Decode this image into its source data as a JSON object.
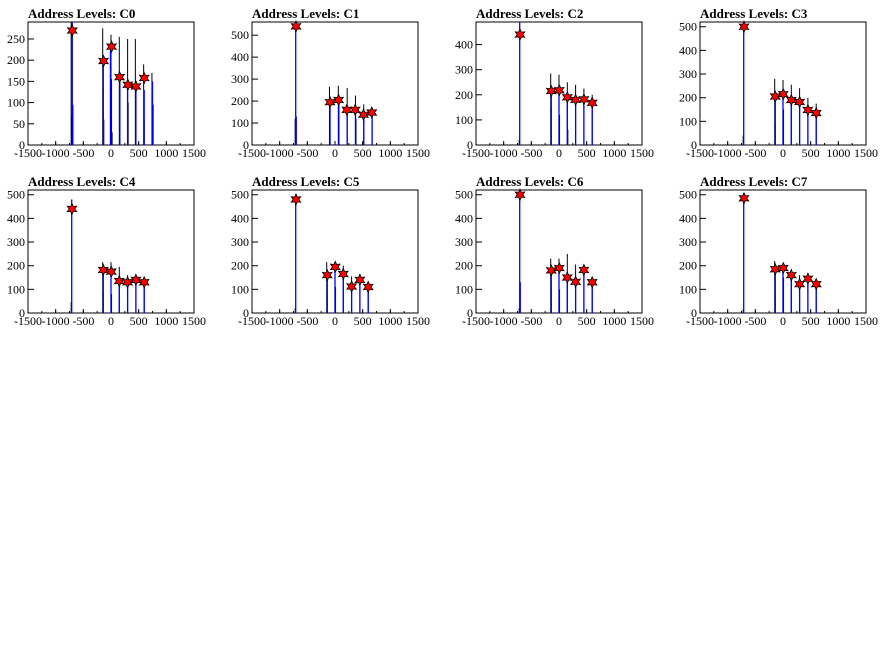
{
  "chart_data": [
    {
      "type": "bar",
      "title": "Address Levels: C0",
      "xlabel": "",
      "ylabel": "",
      "xlim": [
        -1500,
        1500
      ],
      "ylim": [
        0,
        290
      ],
      "xticks": [
        -1500,
        -1000,
        -500,
        0,
        500,
        1000,
        1500
      ],
      "yticks": [
        0,
        50,
        100,
        150,
        200,
        250
      ],
      "black_peaks": [
        [
          -720,
          290
        ],
        [
          -710,
          70
        ],
        [
          -150,
          275
        ],
        [
          -140,
          135
        ],
        [
          -130,
          60
        ],
        [
          0,
          260
        ],
        [
          10,
          155
        ],
        [
          20,
          30
        ],
        [
          150,
          255
        ],
        [
          160,
          130
        ],
        [
          300,
          250
        ],
        [
          310,
          100
        ],
        [
          440,
          250
        ],
        [
          450,
          120
        ],
        [
          590,
          190
        ],
        [
          600,
          60
        ],
        [
          740,
          170
        ],
        [
          750,
          70
        ]
      ],
      "blue_peaks": [
        [
          -700,
          290
        ],
        [
          -690,
          95
        ],
        [
          -140,
          190
        ],
        [
          -10,
          240
        ],
        [
          0,
          130
        ],
        [
          160,
          160
        ],
        [
          300,
          155
        ],
        [
          450,
          135
        ],
        [
          600,
          130
        ],
        [
          750,
          150
        ],
        [
          760,
          95
        ]
      ],
      "markers": [
        {
          "x": -700,
          "y": 270
        },
        {
          "x": -135,
          "y": 198
        },
        {
          "x": 10,
          "y": 232
        },
        {
          "x": 155,
          "y": 160
        },
        {
          "x": 305,
          "y": 142
        },
        {
          "x": 450,
          "y": 138
        },
        {
          "x": 600,
          "y": 158
        }
      ]
    },
    {
      "type": "bar",
      "title": "Address Levels: C1",
      "xlabel": "",
      "ylabel": "",
      "xlim": [
        -1500,
        1500
      ],
      "ylim": [
        0,
        560
      ],
      "xticks": [
        -1500,
        -1000,
        -500,
        0,
        500,
        1000,
        1500
      ],
      "yticks": [
        0,
        100,
        200,
        300,
        400,
        500
      ],
      "black_peaks": [
        [
          -720,
          120
        ],
        [
          -100,
          265
        ],
        [
          -90,
          90
        ],
        [
          60,
          270
        ],
        [
          70,
          200
        ],
        [
          220,
          260
        ],
        [
          370,
          225
        ],
        [
          380,
          120
        ],
        [
          520,
          185
        ],
        [
          670,
          165
        ]
      ],
      "blue_peaks": [
        [
          -710,
          540
        ],
        [
          -700,
          130
        ],
        [
          -90,
          200
        ],
        [
          70,
          210
        ],
        [
          220,
          165
        ],
        [
          370,
          165
        ],
        [
          520,
          140
        ],
        [
          670,
          150
        ]
      ],
      "markers": [
        {
          "x": -705,
          "y": 540
        },
        {
          "x": -90,
          "y": 195
        },
        {
          "x": 65,
          "y": 205
        },
        {
          "x": 215,
          "y": 160
        },
        {
          "x": 365,
          "y": 160
        },
        {
          "x": 515,
          "y": 138
        },
        {
          "x": 665,
          "y": 148
        }
      ]
    },
    {
      "type": "bar",
      "title": "Address Levels: C2",
      "xlabel": "",
      "ylabel": "",
      "xlim": [
        -1500,
        1500
      ],
      "ylim": [
        0,
        490
      ],
      "xticks": [
        -1500,
        -1000,
        -500,
        0,
        500,
        1000,
        1500
      ],
      "yticks": [
        0,
        100,
        200,
        300,
        400
      ],
      "black_peaks": [
        [
          -720,
          20
        ],
        [
          -150,
          285
        ],
        [
          -140,
          150
        ],
        [
          0,
          280
        ],
        [
          10,
          120
        ],
        [
          150,
          250
        ],
        [
          160,
          60
        ],
        [
          300,
          240
        ],
        [
          450,
          225
        ],
        [
          600,
          200
        ]
      ],
      "blue_peaks": [
        [
          -710,
          490
        ],
        [
          -140,
          210
        ],
        [
          0,
          210
        ],
        [
          150,
          185
        ],
        [
          300,
          175
        ],
        [
          450,
          180
        ],
        [
          600,
          165
        ]
      ],
      "markers": [
        {
          "x": -705,
          "y": 440
        },
        {
          "x": -140,
          "y": 215
        },
        {
          "x": 5,
          "y": 218
        },
        {
          "x": 150,
          "y": 190
        },
        {
          "x": 300,
          "y": 180
        },
        {
          "x": 450,
          "y": 182
        },
        {
          "x": 600,
          "y": 168
        }
      ]
    },
    {
      "type": "bar",
      "title": "Address Levels: C3",
      "xlabel": "",
      "ylabel": "",
      "xlim": [
        -1500,
        1500
      ],
      "ylim": [
        0,
        520
      ],
      "xticks": [
        -1500,
        -1000,
        -500,
        0,
        500,
        1000,
        1500
      ],
      "yticks": [
        0,
        100,
        200,
        300,
        400,
        500
      ],
      "black_peaks": [
        [
          -720,
          40
        ],
        [
          -150,
          280
        ],
        [
          -140,
          90
        ],
        [
          0,
          275
        ],
        [
          10,
          150
        ],
        [
          150,
          255
        ],
        [
          300,
          240
        ],
        [
          450,
          200
        ],
        [
          600,
          175
        ]
      ],
      "blue_peaks": [
        [
          -710,
          515
        ],
        [
          -140,
          205
        ],
        [
          0,
          205
        ],
        [
          150,
          185
        ],
        [
          300,
          180
        ],
        [
          450,
          150
        ],
        [
          600,
          140
        ]
      ],
      "markers": [
        {
          "x": -705,
          "y": 500
        },
        {
          "x": -140,
          "y": 205
        },
        {
          "x": 5,
          "y": 215
        },
        {
          "x": 150,
          "y": 190
        },
        {
          "x": 300,
          "y": 182
        },
        {
          "x": 450,
          "y": 148
        },
        {
          "x": 600,
          "y": 135
        }
      ]
    },
    {
      "type": "bar",
      "title": "Address Levels: C4",
      "xlabel": "",
      "ylabel": "",
      "xlim": [
        -1500,
        1500
      ],
      "ylim": [
        0,
        520
      ],
      "xticks": [
        -1500,
        -1000,
        -500,
        0,
        500,
        1000,
        1500
      ],
      "yticks": [
        0,
        100,
        200,
        300,
        400,
        500
      ],
      "black_peaks": [
        [
          -720,
          45
        ],
        [
          -150,
          215
        ],
        [
          -140,
          90
        ],
        [
          0,
          215
        ],
        [
          10,
          80
        ],
        [
          150,
          195
        ],
        [
          300,
          160
        ],
        [
          450,
          150
        ],
        [
          600,
          140
        ]
      ],
      "blue_peaks": [
        [
          -710,
          480
        ],
        [
          -140,
          185
        ],
        [
          0,
          190
        ],
        [
          150,
          140
        ],
        [
          300,
          135
        ],
        [
          450,
          145
        ],
        [
          600,
          130
        ]
      ],
      "markers": [
        {
          "x": -705,
          "y": 440
        },
        {
          "x": -140,
          "y": 182
        },
        {
          "x": 5,
          "y": 175
        },
        {
          "x": 150,
          "y": 135
        },
        {
          "x": 300,
          "y": 130
        },
        {
          "x": 450,
          "y": 140
        },
        {
          "x": 600,
          "y": 130
        }
      ]
    },
    {
      "type": "bar",
      "title": "Address Levels: C5",
      "xlabel": "",
      "ylabel": "",
      "xlim": [
        -1500,
        1500
      ],
      "ylim": [
        0,
        520
      ],
      "xticks": [
        -1500,
        -1000,
        -500,
        0,
        500,
        1000,
        1500
      ],
      "yticks": [
        0,
        100,
        200,
        300,
        400,
        500
      ],
      "black_peaks": [
        [
          -720,
          20
        ],
        [
          -150,
          215
        ],
        [
          -140,
          80
        ],
        [
          0,
          205
        ],
        [
          10,
          110
        ],
        [
          150,
          200
        ],
        [
          300,
          155
        ],
        [
          450,
          165
        ],
        [
          600,
          120
        ]
      ],
      "blue_peaks": [
        [
          -710,
          485
        ],
        [
          -140,
          175
        ],
        [
          0,
          190
        ],
        [
          150,
          180
        ],
        [
          300,
          115
        ],
        [
          450,
          145
        ],
        [
          600,
          110
        ]
      ],
      "markers": [
        {
          "x": -705,
          "y": 480
        },
        {
          "x": -140,
          "y": 160
        },
        {
          "x": 5,
          "y": 195
        },
        {
          "x": 150,
          "y": 165
        },
        {
          "x": 300,
          "y": 112
        },
        {
          "x": 450,
          "y": 140
        },
        {
          "x": 600,
          "y": 110
        }
      ]
    },
    {
      "type": "bar",
      "title": "Address Levels: C6",
      "xlabel": "",
      "ylabel": "",
      "xlim": [
        -1500,
        1500
      ],
      "ylim": [
        0,
        520
      ],
      "xticks": [
        -1500,
        -1000,
        -500,
        0,
        500,
        1000,
        1500
      ],
      "yticks": [
        0,
        100,
        200,
        300,
        400,
        500
      ],
      "black_peaks": [
        [
          -720,
          20
        ],
        [
          -150,
          230
        ],
        [
          -140,
          110
        ],
        [
          0,
          230
        ],
        [
          10,
          100
        ],
        [
          150,
          250
        ],
        [
          300,
          205
        ],
        [
          450,
          200
        ],
        [
          600,
          150
        ]
      ],
      "blue_peaks": [
        [
          -710,
          510
        ],
        [
          -700,
          130
        ],
        [
          -140,
          190
        ],
        [
          0,
          190
        ],
        [
          150,
          165
        ],
        [
          300,
          140
        ],
        [
          450,
          185
        ],
        [
          600,
          135
        ]
      ],
      "markers": [
        {
          "x": -705,
          "y": 500
        },
        {
          "x": -140,
          "y": 180
        },
        {
          "x": 5,
          "y": 190
        },
        {
          "x": 150,
          "y": 150
        },
        {
          "x": 300,
          "y": 132
        },
        {
          "x": 450,
          "y": 182
        },
        {
          "x": 600,
          "y": 130
        }
      ]
    },
    {
      "type": "bar",
      "title": "Address Levels: C7",
      "xlabel": "",
      "ylabel": "",
      "xlim": [
        -1500,
        1500
      ],
      "ylim": [
        0,
        520
      ],
      "xticks": [
        -1500,
        -1000,
        -500,
        0,
        500,
        1000,
        1500
      ],
      "yticks": [
        0,
        100,
        200,
        300,
        400,
        500
      ],
      "black_peaks": [
        [
          -720,
          15
        ],
        [
          -150,
          220
        ],
        [
          -140,
          80
        ],
        [
          0,
          205
        ],
        [
          10,
          150
        ],
        [
          150,
          185
        ],
        [
          300,
          160
        ],
        [
          450,
          160
        ],
        [
          600,
          130
        ]
      ],
      "blue_peaks": [
        [
          -710,
          505
        ],
        [
          -140,
          180
        ],
        [
          0,
          195
        ],
        [
          150,
          180
        ],
        [
          300,
          130
        ],
        [
          450,
          150
        ],
        [
          600,
          120
        ]
      ],
      "markers": [
        {
          "x": -705,
          "y": 485
        },
        {
          "x": -140,
          "y": 185
        },
        {
          "x": 5,
          "y": 190
        },
        {
          "x": 150,
          "y": 160
        },
        {
          "x": 300,
          "y": 122
        },
        {
          "x": 450,
          "y": 145
        },
        {
          "x": 600,
          "y": 122
        }
      ]
    }
  ],
  "colors": {
    "series_black": "#000000",
    "series_blue": "#0000ff",
    "marker": "#ff0000",
    "axis": "#000000"
  }
}
